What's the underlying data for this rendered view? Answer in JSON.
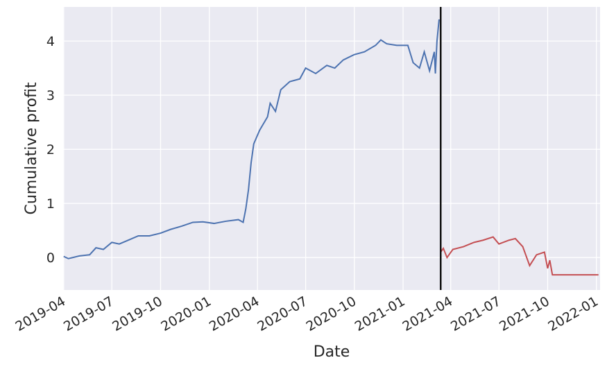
{
  "chart_data": {
    "type": "line",
    "x_label": "Date",
    "y_label": "Cumulative profit",
    "xlim": [
      "2019-03-31",
      "2022-01-08"
    ],
    "ylim": [
      -0.6,
      4.63
    ],
    "yticks": [
      0,
      1,
      2,
      3,
      4
    ],
    "xticks": [
      {
        "value": "2019-04-01",
        "label": "2019-04"
      },
      {
        "value": "2019-07-01",
        "label": "2019-07"
      },
      {
        "value": "2019-10-01",
        "label": "2019-10"
      },
      {
        "value": "2020-01-01",
        "label": "2020-01"
      },
      {
        "value": "2020-04-01",
        "label": "2020-04"
      },
      {
        "value": "2020-07-01",
        "label": "2020-07"
      },
      {
        "value": "2020-10-01",
        "label": "2020-10"
      },
      {
        "value": "2021-01-01",
        "label": "2021-01"
      },
      {
        "value": "2021-04-01",
        "label": "2021-04"
      },
      {
        "value": "2021-07-01",
        "label": "2021-07"
      },
      {
        "value": "2021-10-01",
        "label": "2021-10"
      },
      {
        "value": "2022-01-01",
        "label": "2022-01"
      }
    ],
    "grid": true,
    "vline": "2021-03-13",
    "series": [
      {
        "color": "#4c72b0",
        "x": [
          "2019-04-01",
          "2019-04-10",
          "2019-05-01",
          "2019-05-20",
          "2019-06-01",
          "2019-06-15",
          "2019-07-01",
          "2019-07-15",
          "2019-08-01",
          "2019-08-20",
          "2019-09-10",
          "2019-10-01",
          "2019-10-20",
          "2019-11-10",
          "2019-12-01",
          "2019-12-20",
          "2020-01-10",
          "2020-02-01",
          "2020-02-25",
          "2020-03-05",
          "2020-03-10",
          "2020-03-15",
          "2020-03-20",
          "2020-03-25",
          "2020-04-05",
          "2020-04-20",
          "2020-04-25",
          "2020-05-05",
          "2020-05-15",
          "2020-06-01",
          "2020-06-20",
          "2020-07-01",
          "2020-07-20",
          "2020-08-10",
          "2020-08-25",
          "2020-09-10",
          "2020-10-01",
          "2020-10-20",
          "2020-11-10",
          "2020-11-20",
          "2020-12-01",
          "2020-12-20",
          "2021-01-10",
          "2021-01-20",
          "2021-02-01",
          "2021-02-10",
          "2021-02-20",
          "2021-03-01",
          "2021-03-03",
          "2021-03-06",
          "2021-03-10"
        ],
        "values": [
          0.02,
          -0.02,
          0.03,
          0.05,
          0.18,
          0.15,
          0.28,
          0.25,
          0.32,
          0.4,
          0.4,
          0.45,
          0.52,
          0.58,
          0.65,
          0.66,
          0.63,
          0.67,
          0.7,
          0.65,
          0.9,
          1.25,
          1.75,
          2.1,
          2.35,
          2.6,
          2.85,
          2.7,
          3.1,
          3.25,
          3.3,
          3.5,
          3.4,
          3.55,
          3.5,
          3.65,
          3.75,
          3.8,
          3.92,
          4.02,
          3.95,
          3.92,
          3.92,
          3.6,
          3.5,
          3.8,
          3.45,
          3.8,
          3.4,
          4.0,
          4.4
        ]
      },
      {
        "color": "#c44e52",
        "x": [
          "2021-03-13",
          "2021-03-18",
          "2021-03-25",
          "2021-04-05",
          "2021-04-25",
          "2021-05-15",
          "2021-06-01",
          "2021-06-20",
          "2021-07-01",
          "2021-07-20",
          "2021-08-01",
          "2021-08-15",
          "2021-08-28",
          "2021-09-10",
          "2021-09-25",
          "2021-10-01",
          "2021-10-05",
          "2021-10-10",
          "2022-01-05"
        ],
        "values": [
          0.1,
          0.17,
          0.0,
          0.15,
          0.2,
          0.28,
          0.32,
          0.38,
          0.25,
          0.32,
          0.35,
          0.2,
          -0.15,
          0.05,
          0.1,
          -0.2,
          -0.05,
          -0.32,
          -0.32
        ]
      }
    ]
  }
}
